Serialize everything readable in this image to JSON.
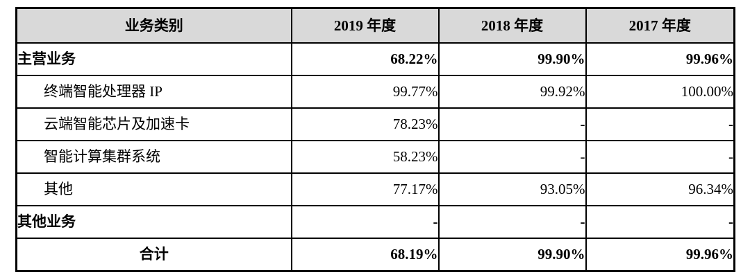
{
  "table": {
    "columns": [
      {
        "label": "业务类别"
      },
      {
        "label": "2019 年度"
      },
      {
        "label": "2018 年度"
      },
      {
        "label": "2017 年度"
      }
    ],
    "rows": [
      {
        "label": "主营业务",
        "values": [
          "68.22%",
          "99.90%",
          "99.96%"
        ],
        "style": "section"
      },
      {
        "label": "终端智能处理器 IP",
        "values": [
          "99.77%",
          "99.92%",
          "100.00%"
        ],
        "style": "sub"
      },
      {
        "label": "云端智能芯片及加速卡",
        "values": [
          "78.23%",
          "-",
          "-"
        ],
        "style": "sub"
      },
      {
        "label": "智能计算集群系统",
        "values": [
          "58.23%",
          "-",
          "-"
        ],
        "style": "sub"
      },
      {
        "label": "其他",
        "values": [
          "77.17%",
          "93.05%",
          "96.34%"
        ],
        "style": "sub"
      },
      {
        "label": "其他业务",
        "values": [
          "-",
          "-",
          "-"
        ],
        "style": "section"
      },
      {
        "label": "合计",
        "values": [
          "68.19%",
          "99.90%",
          "99.96%"
        ],
        "style": "total"
      }
    ],
    "colors": {
      "header_bg": "#d9d9d9",
      "border": "#000000",
      "row_bg": "#ffffff"
    }
  }
}
